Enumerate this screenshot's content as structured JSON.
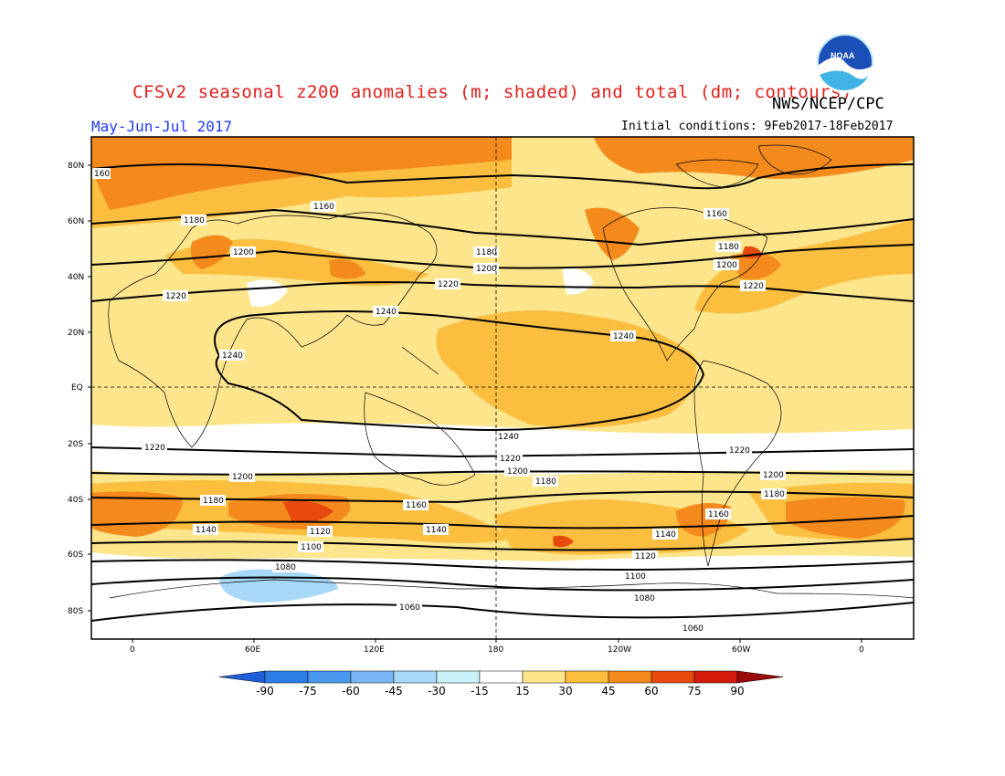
{
  "header": {
    "title": "CFSv2 seasonal z200 anomalies (m; shaded) and total (dm; contours)",
    "agency": "NWS/NCEP/CPC",
    "period": "May-Jun-Jul 2017",
    "initial_conditions": "Initial conditions: 9Feb2017-18Feb2017"
  },
  "axes": {
    "lat_labels": [
      "80N",
      "60N",
      "40N",
      "20N",
      "EQ",
      "20S",
      "40S",
      "60S",
      "80S"
    ],
    "lon_labels": [
      "0",
      "60E",
      "120E",
      "180",
      "120W",
      "60W",
      "0"
    ]
  },
  "contours": [
    {
      "label": "1160"
    },
    {
      "label": "1180"
    },
    {
      "label": "1200"
    },
    {
      "label": "1220"
    },
    {
      "label": "1240"
    },
    {
      "label": "1100"
    },
    {
      "label": "1080"
    },
    {
      "label": "1060"
    },
    {
      "label": "1120"
    },
    {
      "label": "1140"
    }
  ],
  "colorbar": {
    "ticks": [
      "-90",
      "-75",
      "-60",
      "-45",
      "-30",
      "-15",
      "15",
      "30",
      "45",
      "60",
      "75",
      "90"
    ],
    "colors": [
      "#1e5fd8",
      "#2d7de6",
      "#4a97ee",
      "#79b6f5",
      "#a8d8f7",
      "#c9f3f8",
      "#ffffff",
      "#fde58c",
      "#fbbe3f",
      "#f48a1c",
      "#e84a0e",
      "#d41a0a",
      "#9a0a0a"
    ]
  },
  "logo": {
    "text": "NOAA"
  }
}
